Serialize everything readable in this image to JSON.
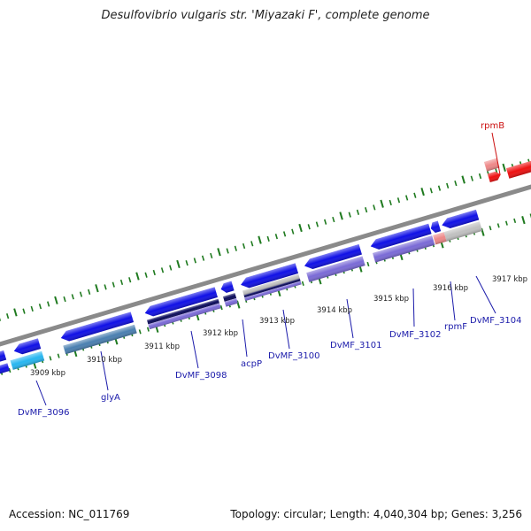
{
  "title": "Desulfovibrio vulgaris str. 'Miyazaki F', complete genome",
  "footer": {
    "accession": "Accession: NC_011769",
    "topology": "Topology: circular; Length: 4,040,304 bp; Genes: 3,256"
  },
  "colors": {
    "backbone": "#8a8a8a",
    "ticks": "#1f7a1f",
    "gene_blue": "#1010e6",
    "gene_navy": "#0a0a5a",
    "gene_purple": "#7a6ad6",
    "gene_steel": "#4a7fb0",
    "gene_cyan": "#27b6f0",
    "gene_gray": "#c0c0c0",
    "rna_red": "#ee1111",
    "rna_pink": "#ee8888",
    "label_blue": "#1a1aaa",
    "label_red": "#cc1111"
  },
  "position_labels": [
    "3909 kbp",
    "3910 kbp",
    "3911 kbp",
    "3912 kbp",
    "3913 kbp",
    "3914 kbp",
    "3915 kbp",
    "3916 kbp",
    "3917 kbp"
  ],
  "gene_labels": [
    {
      "name": "DvMF_3096",
      "type": "cds"
    },
    {
      "name": "glyA",
      "type": "cds"
    },
    {
      "name": "DvMF_3098",
      "type": "cds"
    },
    {
      "name": "acpP",
      "type": "cds"
    },
    {
      "name": "DvMF_3100",
      "type": "cds"
    },
    {
      "name": "DvMF_3101",
      "type": "cds"
    },
    {
      "name": "DvMF_3102",
      "type": "cds"
    },
    {
      "name": "rpmF",
      "type": "cds"
    },
    {
      "name": "DvMF_3104",
      "type": "cds"
    },
    {
      "name": "rpmB",
      "type": "rna"
    }
  ]
}
